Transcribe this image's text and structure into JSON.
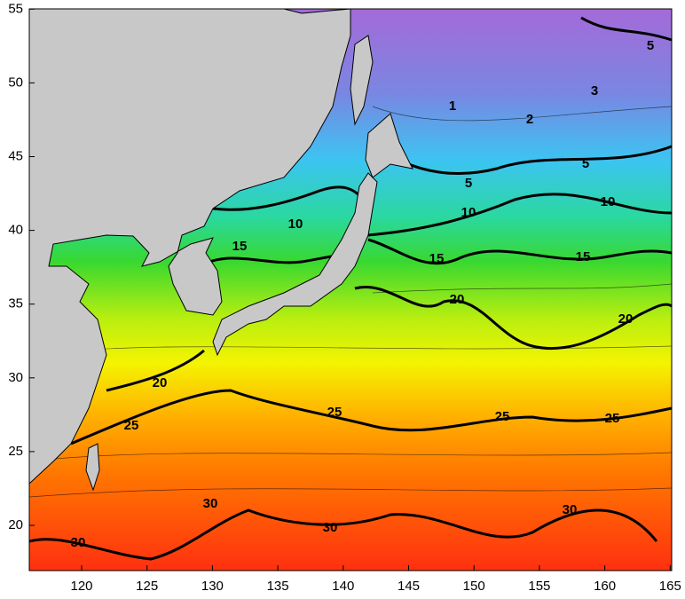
{
  "map": {
    "xticks": [
      "120",
      "125",
      "130",
      "135",
      "140",
      "145",
      "150",
      "155",
      "160",
      "165"
    ],
    "yticks": [
      "20",
      "25",
      "30",
      "35",
      "40",
      "45",
      "50",
      "55"
    ],
    "contour_labels": [
      "1",
      "2",
      "3",
      "5",
      "5",
      "5",
      "10",
      "10",
      "10",
      "15",
      "15",
      "15",
      "20",
      "20",
      "20",
      "25",
      "25",
      "25",
      "25",
      "30",
      "30",
      "30",
      "30"
    ]
  }
}
